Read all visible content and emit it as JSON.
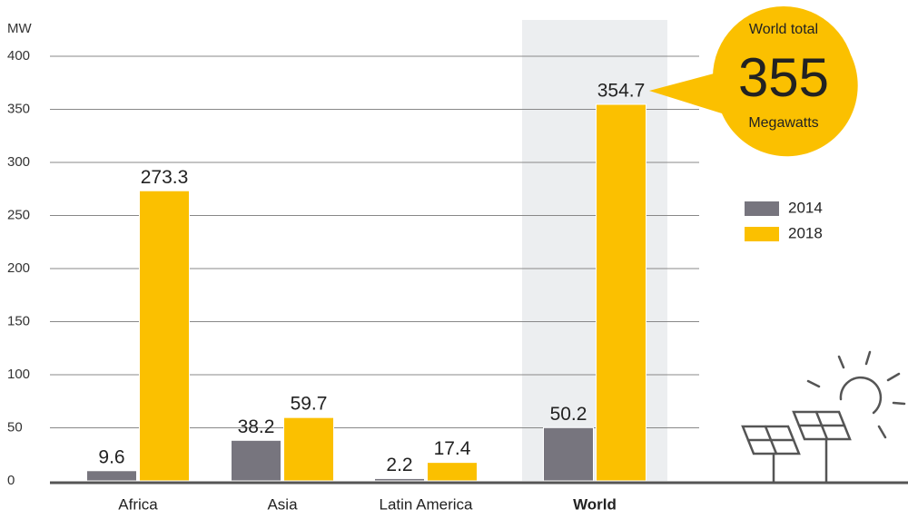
{
  "chart_data": {
    "type": "bar",
    "y_label": "MW",
    "categories": [
      "Africa",
      "Asia",
      "Latin America",
      "World"
    ],
    "series": [
      {
        "name": "2014",
        "color": "#77757e",
        "values": [
          9.6,
          38.2,
          2.2,
          50.2
        ]
      },
      {
        "name": "2018",
        "color": "#fbc000",
        "values": [
          273.3,
          59.7,
          17.4,
          354.7
        ]
      }
    ],
    "ylim": [
      0,
      400
    ],
    "yticks": [
      0,
      50,
      100,
      150,
      200,
      250,
      300,
      350,
      400
    ],
    "grid": true,
    "highlight_index": 3,
    "callout": {
      "title": "World total",
      "value": 355,
      "unit": "Megawatts"
    }
  }
}
